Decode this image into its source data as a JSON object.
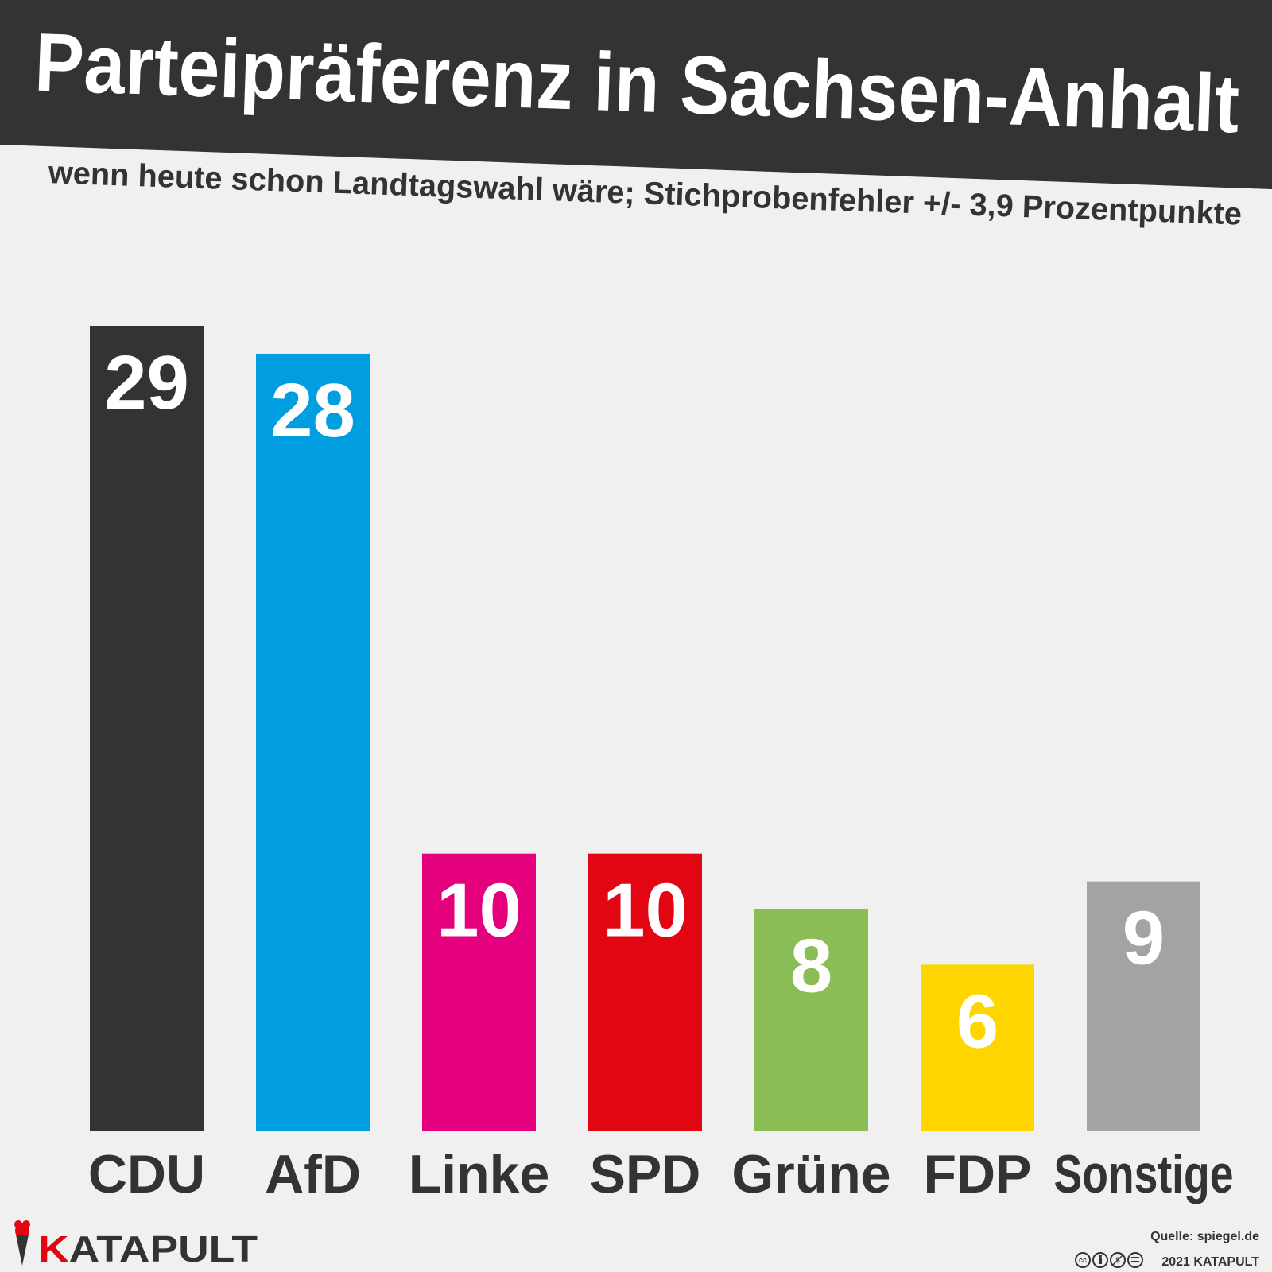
{
  "header": {
    "title": "Parteipräferenz in Sachsen-Anhalt",
    "subtitle": "wenn heute schon Landtagswahl wäre; Stichprobenfehler +/- 3,9 Prozentpunkte"
  },
  "chart_data": {
    "type": "bar",
    "title": "Parteipräferenz in Sachsen-Anhalt",
    "subtitle": "wenn heute schon Landtagswahl wäre; Stichprobenfehler +/- 3,9 Prozentpunkte",
    "xlabel": "",
    "ylabel": "",
    "ylim": [
      0,
      29
    ],
    "grid": false,
    "categories": [
      "CDU",
      "AfD",
      "Linke",
      "SPD",
      "Grüne",
      "FDP",
      "Sonstige"
    ],
    "values": [
      29,
      28,
      10,
      10,
      8,
      6,
      9
    ],
    "colors": [
      "#333333",
      "#009ee0",
      "#e5007e",
      "#e20613",
      "#8abd55",
      "#ffd500",
      "#a3a3a3"
    ],
    "data_labels": [
      "29",
      "28",
      "10",
      "10",
      "8",
      "6",
      "9"
    ]
  },
  "footer": {
    "logo_text": "KATAPULT",
    "logo_accent_color": "#e20613",
    "source": "Quelle: spiegel.de",
    "copyright": "2021 KATAPULT",
    "license_icons": [
      "cc-icon",
      "by-icon",
      "nc-icon",
      "nd-icon"
    ]
  },
  "colors": {
    "background": "#f0f0f0",
    "banner": "#333333",
    "text_dark": "#333333",
    "text_light": "#ffffff"
  }
}
